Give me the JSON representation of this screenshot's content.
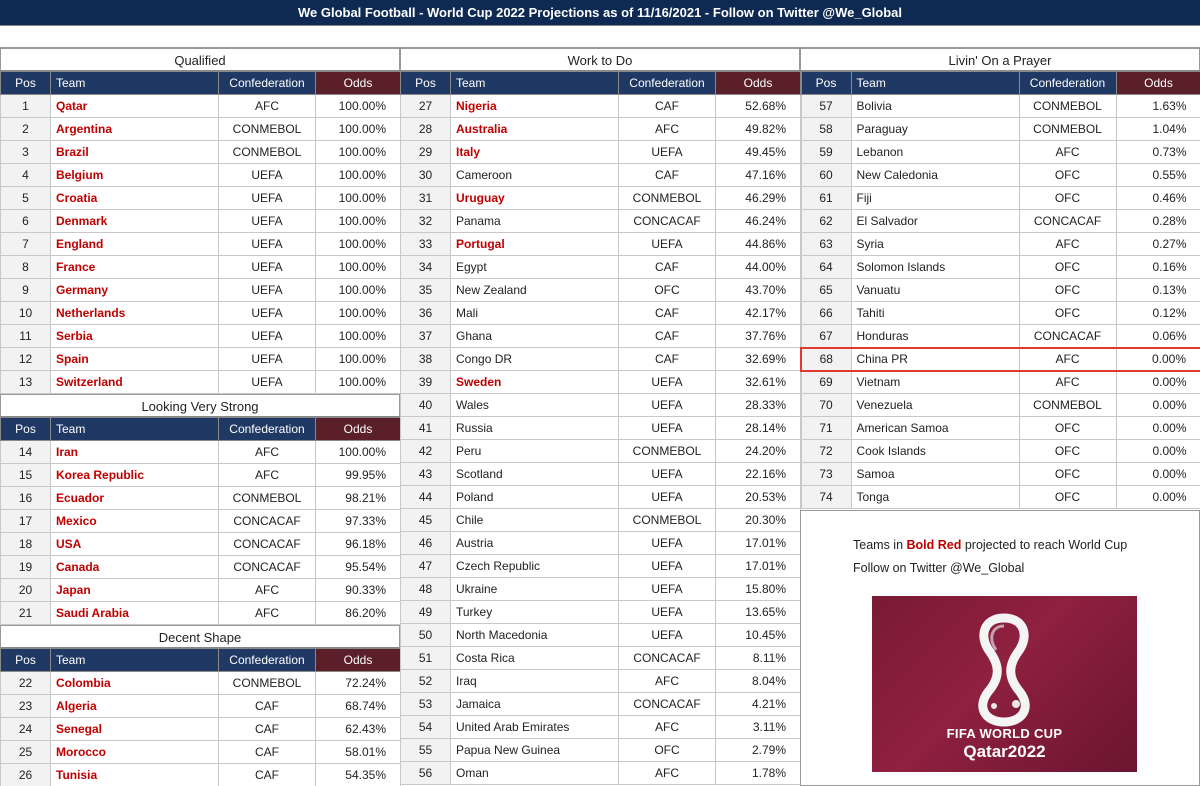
{
  "banner": "We Global Football - World Cup 2022 Projections as of 11/16/2021 - Follow on Twitter @We_Global",
  "headers": {
    "pos": "Pos",
    "team": "Team",
    "conf": "Confederation",
    "odds": "Odds"
  },
  "colors": {
    "header_bg": "#1f3864",
    "odds_header_bg": "#5a1f28",
    "qualified_red": "#c00000",
    "highlight_border": "#e03a2e"
  },
  "sections": {
    "qualified": {
      "title": "Qualified",
      "rows": [
        {
          "pos": "1",
          "team": "Qatar",
          "conf": "AFC",
          "odds": "100.00%",
          "red": true
        },
        {
          "pos": "2",
          "team": "Argentina",
          "conf": "CONMEBOL",
          "odds": "100.00%",
          "red": true
        },
        {
          "pos": "3",
          "team": "Brazil",
          "conf": "CONMEBOL",
          "odds": "100.00%",
          "red": true
        },
        {
          "pos": "4",
          "team": "Belgium",
          "conf": "UEFA",
          "odds": "100.00%",
          "red": true
        },
        {
          "pos": "5",
          "team": "Croatia",
          "conf": "UEFA",
          "odds": "100.00%",
          "red": true
        },
        {
          "pos": "6",
          "team": "Denmark",
          "conf": "UEFA",
          "odds": "100.00%",
          "red": true
        },
        {
          "pos": "7",
          "team": "England",
          "conf": "UEFA",
          "odds": "100.00%",
          "red": true
        },
        {
          "pos": "8",
          "team": "France",
          "conf": "UEFA",
          "odds": "100.00%",
          "red": true
        },
        {
          "pos": "9",
          "team": "Germany",
          "conf": "UEFA",
          "odds": "100.00%",
          "red": true
        },
        {
          "pos": "10",
          "team": "Netherlands",
          "conf": "UEFA",
          "odds": "100.00%",
          "red": true
        },
        {
          "pos": "11",
          "team": "Serbia",
          "conf": "UEFA",
          "odds": "100.00%",
          "red": true
        },
        {
          "pos": "12",
          "team": "Spain",
          "conf": "UEFA",
          "odds": "100.00%",
          "red": true
        },
        {
          "pos": "13",
          "team": "Switzerland",
          "conf": "UEFA",
          "odds": "100.00%",
          "red": true
        }
      ]
    },
    "looking_very_strong": {
      "title": "Looking Very Strong",
      "rows": [
        {
          "pos": "14",
          "team": "Iran",
          "conf": "AFC",
          "odds": "100.00%",
          "red": true
        },
        {
          "pos": "15",
          "team": "Korea Republic",
          "conf": "AFC",
          "odds": "99.95%",
          "red": true
        },
        {
          "pos": "16",
          "team": "Ecuador",
          "conf": "CONMEBOL",
          "odds": "98.21%",
          "red": true
        },
        {
          "pos": "17",
          "team": "Mexico",
          "conf": "CONCACAF",
          "odds": "97.33%",
          "red": true
        },
        {
          "pos": "18",
          "team": "USA",
          "conf": "CONCACAF",
          "odds": "96.18%",
          "red": true
        },
        {
          "pos": "19",
          "team": "Canada",
          "conf": "CONCACAF",
          "odds": "95.54%",
          "red": true
        },
        {
          "pos": "20",
          "team": "Japan",
          "conf": "AFC",
          "odds": "90.33%",
          "red": true
        },
        {
          "pos": "21",
          "team": "Saudi Arabia",
          "conf": "AFC",
          "odds": "86.20%",
          "red": true
        }
      ]
    },
    "decent_shape": {
      "title": "Decent Shape",
      "rows": [
        {
          "pos": "22",
          "team": "Colombia",
          "conf": "CONMEBOL",
          "odds": "72.24%",
          "red": true
        },
        {
          "pos": "23",
          "team": "Algeria",
          "conf": "CAF",
          "odds": "68.74%",
          "red": true
        },
        {
          "pos": "24",
          "team": "Senegal",
          "conf": "CAF",
          "odds": "62.43%",
          "red": true
        },
        {
          "pos": "25",
          "team": "Morocco",
          "conf": "CAF",
          "odds": "58.01%",
          "red": true
        },
        {
          "pos": "26",
          "team": "Tunisia",
          "conf": "CAF",
          "odds": "54.35%",
          "red": true
        }
      ]
    },
    "work_to_do": {
      "title": "Work to Do",
      "rows": [
        {
          "pos": "27",
          "team": "Nigeria",
          "conf": "CAF",
          "odds": "52.68%",
          "red": true
        },
        {
          "pos": "28",
          "team": "Australia",
          "conf": "AFC",
          "odds": "49.82%",
          "red": true
        },
        {
          "pos": "29",
          "team": "Italy",
          "conf": "UEFA",
          "odds": "49.45%",
          "red": true
        },
        {
          "pos": "30",
          "team": "Cameroon",
          "conf": "CAF",
          "odds": "47.16%",
          "red": false
        },
        {
          "pos": "31",
          "team": "Uruguay",
          "conf": "CONMEBOL",
          "odds": "46.29%",
          "red": true
        },
        {
          "pos": "32",
          "team": "Panama",
          "conf": "CONCACAF",
          "odds": "46.24%",
          "red": false
        },
        {
          "pos": "33",
          "team": "Portugal",
          "conf": "UEFA",
          "odds": "44.86%",
          "red": true
        },
        {
          "pos": "34",
          "team": "Egypt",
          "conf": "CAF",
          "odds": "44.00%",
          "red": false
        },
        {
          "pos": "35",
          "team": "New Zealand",
          "conf": "OFC",
          "odds": "43.70%",
          "red": false
        },
        {
          "pos": "36",
          "team": "Mali",
          "conf": "CAF",
          "odds": "42.17%",
          "red": false
        },
        {
          "pos": "37",
          "team": "Ghana",
          "conf": "CAF",
          "odds": "37.76%",
          "red": false
        },
        {
          "pos": "38",
          "team": "Congo DR",
          "conf": "CAF",
          "odds": "32.69%",
          "red": false
        },
        {
          "pos": "39",
          "team": "Sweden",
          "conf": "UEFA",
          "odds": "32.61%",
          "red": true
        },
        {
          "pos": "40",
          "team": "Wales",
          "conf": "UEFA",
          "odds": "28.33%",
          "red": false
        },
        {
          "pos": "41",
          "team": "Russia",
          "conf": "UEFA",
          "odds": "28.14%",
          "red": false
        },
        {
          "pos": "42",
          "team": "Peru",
          "conf": "CONMEBOL",
          "odds": "24.20%",
          "red": false
        },
        {
          "pos": "43",
          "team": "Scotland",
          "conf": "UEFA",
          "odds": "22.16%",
          "red": false
        },
        {
          "pos": "44",
          "team": "Poland",
          "conf": "UEFA",
          "odds": "20.53%",
          "red": false
        },
        {
          "pos": "45",
          "team": "Chile",
          "conf": "CONMEBOL",
          "odds": "20.30%",
          "red": false
        },
        {
          "pos": "46",
          "team": "Austria",
          "conf": "UEFA",
          "odds": "17.01%",
          "red": false
        },
        {
          "pos": "47",
          "team": "Czech Republic",
          "conf": "UEFA",
          "odds": "17.01%",
          "red": false
        },
        {
          "pos": "48",
          "team": "Ukraine",
          "conf": "UEFA",
          "odds": "15.80%",
          "red": false
        },
        {
          "pos": "49",
          "team": "Turkey",
          "conf": "UEFA",
          "odds": "13.65%",
          "red": false
        },
        {
          "pos": "50",
          "team": "North Macedonia",
          "conf": "UEFA",
          "odds": "10.45%",
          "red": false
        },
        {
          "pos": "51",
          "team": "Costa Rica",
          "conf": "CONCACAF",
          "odds": "8.11%",
          "red": false
        },
        {
          "pos": "52",
          "team": "Iraq",
          "conf": "AFC",
          "odds": "8.04%",
          "red": false
        },
        {
          "pos": "53",
          "team": "Jamaica",
          "conf": "CONCACAF",
          "odds": "4.21%",
          "red": false
        },
        {
          "pos": "54",
          "team": "United Arab Emirates",
          "conf": "AFC",
          "odds": "3.11%",
          "red": false
        },
        {
          "pos": "55",
          "team": "Papua New Guinea",
          "conf": "OFC",
          "odds": "2.79%",
          "red": false
        },
        {
          "pos": "56",
          "team": "Oman",
          "conf": "AFC",
          "odds": "1.78%",
          "red": false
        }
      ]
    },
    "livin_on_a_prayer": {
      "title": "Livin' On a Prayer",
      "rows": [
        {
          "pos": "57",
          "team": "Bolivia",
          "conf": "CONMEBOL",
          "odds": "1.63%",
          "red": false
        },
        {
          "pos": "58",
          "team": "Paraguay",
          "conf": "CONMEBOL",
          "odds": "1.04%",
          "red": false
        },
        {
          "pos": "59",
          "team": "Lebanon",
          "conf": "AFC",
          "odds": "0.73%",
          "red": false
        },
        {
          "pos": "60",
          "team": "New Caledonia",
          "conf": "OFC",
          "odds": "0.55%",
          "red": false
        },
        {
          "pos": "61",
          "team": "Fiji",
          "conf": "OFC",
          "odds": "0.46%",
          "red": false
        },
        {
          "pos": "62",
          "team": "El Salvador",
          "conf": "CONCACAF",
          "odds": "0.28%",
          "red": false
        },
        {
          "pos": "63",
          "team": "Syria",
          "conf": "AFC",
          "odds": "0.27%",
          "red": false
        },
        {
          "pos": "64",
          "team": "Solomon Islands",
          "conf": "OFC",
          "odds": "0.16%",
          "red": false
        },
        {
          "pos": "65",
          "team": "Vanuatu",
          "conf": "OFC",
          "odds": "0.13%",
          "red": false
        },
        {
          "pos": "66",
          "team": "Tahiti",
          "conf": "OFC",
          "odds": "0.12%",
          "red": false
        },
        {
          "pos": "67",
          "team": "Honduras",
          "conf": "CONCACAF",
          "odds": "0.06%",
          "red": false
        },
        {
          "pos": "68",
          "team": "China PR",
          "conf": "AFC",
          "odds": "0.00%",
          "red": false,
          "highlight": true
        },
        {
          "pos": "69",
          "team": "Vietnam",
          "conf": "AFC",
          "odds": "0.00%",
          "red": false
        },
        {
          "pos": "70",
          "team": "Venezuela",
          "conf": "CONMEBOL",
          "odds": "0.00%",
          "red": false
        },
        {
          "pos": "71",
          "team": "American Samoa",
          "conf": "OFC",
          "odds": "0.00%",
          "red": false
        },
        {
          "pos": "72",
          "team": "Cook Islands",
          "conf": "OFC",
          "odds": "0.00%",
          "red": false
        },
        {
          "pos": "73",
          "team": "Samoa",
          "conf": "OFC",
          "odds": "0.00%",
          "red": false
        },
        {
          "pos": "74",
          "team": "Tonga",
          "conf": "OFC",
          "odds": "0.00%",
          "red": false
        }
      ]
    }
  },
  "notes": {
    "line1_pre": "Teams in ",
    "line1_red": "Bold Red",
    "line1_post": " projected to reach World Cup",
    "line2": "Follow on Twitter @We_Global"
  },
  "logo": {
    "line1": "FIFA WORLD CUP",
    "line2": "Qatar2022"
  }
}
